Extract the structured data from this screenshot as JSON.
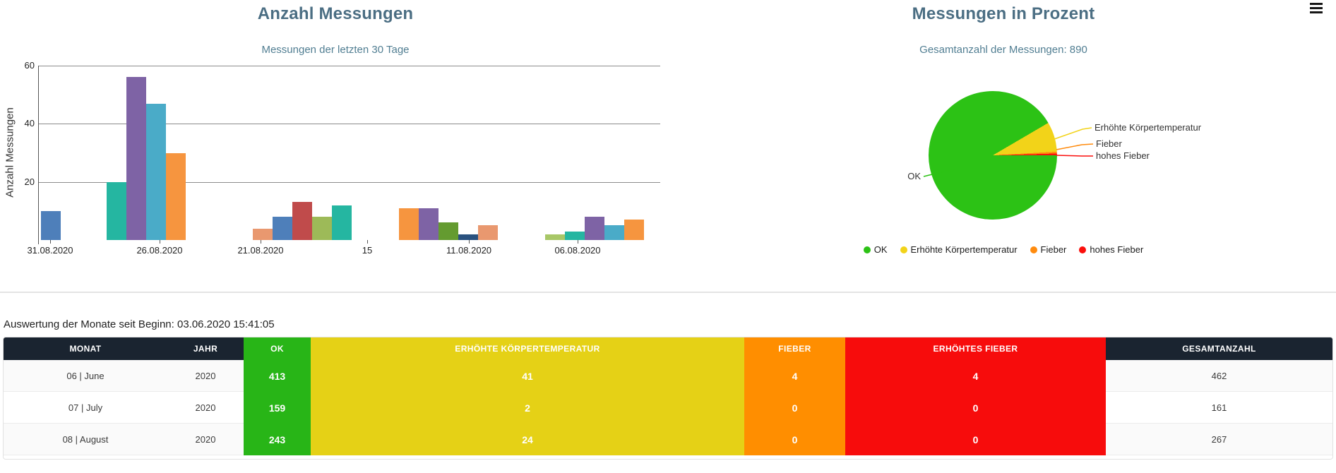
{
  "header": {
    "menu_icon": "hamburger"
  },
  "chart_data": [
    {
      "type": "bar",
      "title": "Anzahl Messungen",
      "subtitle": "Messungen der letzten 30 Tage",
      "xlabel": "",
      "ylabel": "Anzahl Messungen",
      "ylim": [
        0,
        60
      ],
      "y_ticks": [
        20,
        40,
        60
      ],
      "grid": true,
      "x_tick_labels": [
        "31.08.2020",
        "26.08.2020",
        "21.08.2020",
        "15",
        "11.08.2020",
        "06.08.2020"
      ],
      "groups": [
        {
          "bars": [
            {
              "value": 10,
              "color": "#4e7fba"
            }
          ]
        },
        {
          "bars": [
            {
              "value": 20,
              "color": "#25b6a1"
            },
            {
              "value": 56,
              "color": "#7e63a5"
            },
            {
              "value": 47,
              "color": "#4aabc8"
            },
            {
              "value": 30,
              "color": "#f6953f"
            }
          ]
        },
        {
          "bars": [
            {
              "value": 4,
              "color": "#e9986f"
            },
            {
              "value": 8,
              "color": "#4e7fba"
            },
            {
              "value": 13,
              "color": "#c04b4b"
            },
            {
              "value": 8,
              "color": "#9dba58"
            },
            {
              "value": 12,
              "color": "#25b6a1"
            }
          ]
        },
        {
          "bars": [
            {
              "value": 11,
              "color": "#f6953f"
            },
            {
              "value": 11,
              "color": "#7e63a5"
            },
            {
              "value": 6,
              "color": "#649b30"
            },
            {
              "value": 2,
              "color": "#2a527f"
            },
            {
              "value": 5,
              "color": "#e9986f"
            }
          ]
        },
        {
          "bars": [
            {
              "value": 2,
              "color": "#a8c767"
            },
            {
              "value": 3,
              "color": "#25b6a1"
            },
            {
              "value": 8,
              "color": "#7e63a5"
            },
            {
              "value": 5,
              "color": "#4aabc8"
            },
            {
              "value": 7,
              "color": "#f6953f"
            }
          ]
        }
      ]
    },
    {
      "type": "pie",
      "title": "Messungen in Prozent",
      "subtitle": "Gesamtanzahl der Messungen: 890",
      "total": 890,
      "legend_position": "bottom",
      "slices": [
        {
          "label": "OK",
          "value": 815,
          "color": "#2cc215"
        },
        {
          "label": "Erhöhte Körpertemperatur",
          "value": 67,
          "color": "#f2d319"
        },
        {
          "label": "Fieber",
          "value": 4,
          "color": "#ff8b0e"
        },
        {
          "label": "hohes Fieber",
          "value": 4,
          "color": "#fb0f0c"
        }
      ]
    }
  ],
  "table": {
    "caption": "Auswertung der Monate seit Beginn: 03.06.2020 15:41:05",
    "header_dark_bg": "#1a2430",
    "row_stripes": [
      "#fafafa",
      "#ffffff",
      "#fafafa"
    ],
    "columns": [
      {
        "label": "MONAT",
        "header_bg": "#1a2430",
        "body_bg": null,
        "body_color": "#3b3b3b"
      },
      {
        "label": "JAHR",
        "header_bg": "#1a2430",
        "body_bg": null,
        "body_color": "#3b3b3b"
      },
      {
        "label": "OK",
        "header_bg": "#28b517",
        "body_bg": "#28b517",
        "body_color": "#ffffff"
      },
      {
        "label": "ERHÖHTE KÖRPERTEMPERATUR",
        "header_bg": "#e5d116",
        "body_bg": "#e5d116",
        "body_color": "#ffffff"
      },
      {
        "label": "FIEBER",
        "header_bg": "#ff8e00",
        "body_bg": "#ff8e00",
        "body_color": "#ffffff"
      },
      {
        "label": "ERHÖHTES FIEBER",
        "header_bg": "#f70c0c",
        "body_bg": "#f70c0c",
        "body_color": "#ffffff"
      },
      {
        "label": "GESAMTANZAHL",
        "header_bg": "#1a2430",
        "body_bg": null,
        "body_color": "#3b3b3b"
      }
    ],
    "rows": [
      [
        "06 | June",
        "2020",
        "413",
        "41",
        "4",
        "4",
        "462"
      ],
      [
        "07 | July",
        "2020",
        "159",
        "2",
        "0",
        "0",
        "161"
      ],
      [
        "08 | August",
        "2020",
        "243",
        "24",
        "0",
        "0",
        "267"
      ]
    ]
  }
}
